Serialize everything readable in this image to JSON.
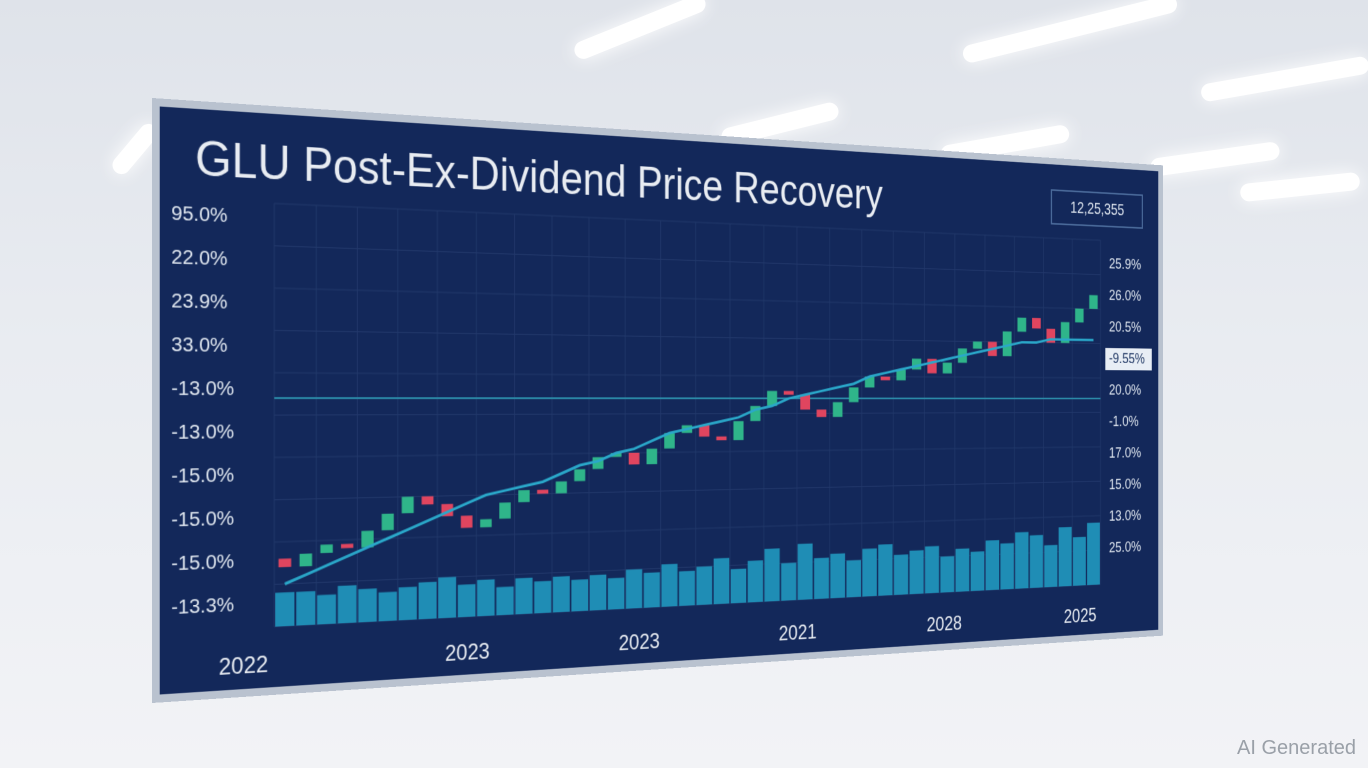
{
  "chart_data": {
    "type": "candlestick",
    "title": "GLU Post-Ex-Dividend Price Recovery",
    "badge": "12,25,355",
    "left_labels": [
      "95.0%",
      "22.0%",
      "23.9%",
      "33.0%",
      "-13.0%",
      "-13.0%",
      "-15.0%",
      "-15.0%",
      "-15.0%",
      "-13.3%"
    ],
    "right_labels": [
      "25.9%",
      "26.0%",
      "20.5%",
      "-9.55%",
      "20.0%",
      "-1.0%",
      "17.0%",
      "15.0%",
      "13.0%",
      "25.0%"
    ],
    "x_labels": [
      "2022",
      "2023",
      "2023",
      "2021",
      "2028",
      "2025"
    ],
    "ylim": [
      0,
      100
    ],
    "up_color": "#2fb58a",
    "down_color": "#e0455f",
    "open": [
      16,
      14,
      17,
      19,
      18,
      22,
      26,
      30,
      28,
      25,
      22,
      24,
      28,
      31,
      30,
      33,
      36,
      39,
      40,
      37,
      41,
      45,
      47,
      44,
      43,
      48,
      52,
      56,
      55,
      51,
      49,
      53,
      57,
      60,
      59,
      62,
      65,
      61,
      64,
      68,
      70,
      66,
      73,
      77,
      74,
      70,
      76,
      80
    ],
    "close": [
      14,
      17,
      19,
      18,
      22,
      26,
      30,
      28,
      25,
      22,
      24,
      28,
      31,
      30,
      33,
      36,
      39,
      40,
      37,
      41,
      45,
      47,
      44,
      43,
      48,
      52,
      56,
      55,
      51,
      49,
      53,
      57,
      60,
      59,
      62,
      65,
      61,
      64,
      68,
      70,
      66,
      73,
      77,
      74,
      70,
      76,
      80,
      84
    ],
    "average": {
      "color": "#2aa7c9",
      "values": [
        10,
        12,
        14,
        16,
        18,
        20,
        22,
        24,
        26,
        28,
        30,
        31,
        32,
        33,
        35,
        37,
        38,
        40,
        41,
        43,
        45,
        46,
        47,
        48,
        49,
        51,
        52,
        54,
        55,
        56,
        57,
        58,
        60,
        61,
        62,
        63,
        64,
        65,
        66,
        67,
        68,
        69,
        70,
        70,
        71,
        71,
        71,
        71
      ]
    },
    "volume": {
      "color": "#1f8db5",
      "values": [
        8,
        8,
        7,
        9,
        8,
        7,
        8,
        9,
        10,
        8,
        9,
        7,
        9,
        8,
        9,
        8,
        9,
        8,
        10,
        9,
        11,
        9,
        10,
        12,
        9,
        11,
        14,
        10,
        15,
        11,
        12,
        10,
        13,
        14,
        11,
        12,
        13,
        10,
        12,
        11,
        14,
        13,
        16,
        15,
        12,
        17,
        14,
        18
      ]
    }
  },
  "watermark": "AI Generated"
}
